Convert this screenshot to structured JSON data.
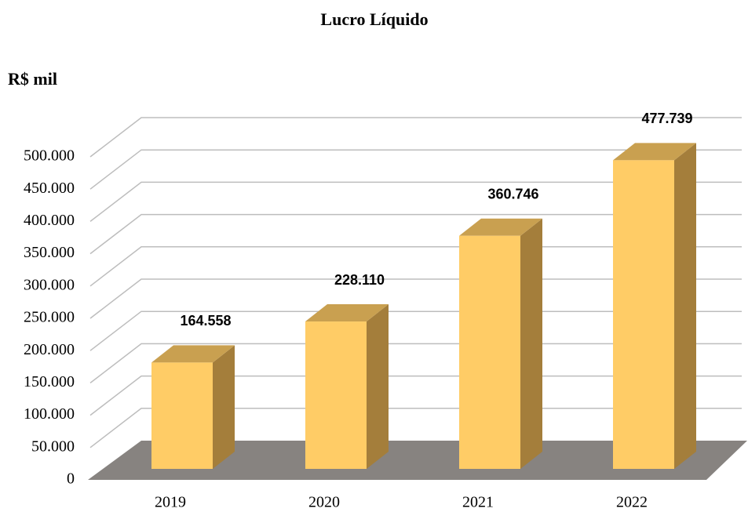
{
  "chart_data": {
    "type": "bar3d",
    "title": "Lucro Líquido",
    "ylabel": "R$ mil",
    "categories": [
      "2019",
      "2020",
      "2021",
      "2022"
    ],
    "values": [
      164558,
      228110,
      360746,
      477739
    ],
    "value_labels": [
      "164.558",
      "228.110",
      "360.746",
      "477.739"
    ],
    "color": "#ffcc66",
    "ylim": [
      0,
      500000
    ],
    "yticks": [
      0,
      {
        "value": 50000,
        "label": "50.000"
      },
      {
        "value": 100000,
        "label": "100.000"
      },
      {
        "value": 150000,
        "label": "150.000"
      },
      {
        "value": 200000,
        "label": "200.000"
      },
      {
        "value": 250000,
        "label": "250.000"
      },
      {
        "value": 300000,
        "label": "300.000"
      },
      {
        "value": 350000,
        "label": "350.000"
      },
      {
        "value": 400000,
        "label": "400.000"
      },
      {
        "value": 450000,
        "label": "450.000"
      },
      {
        "value": 500000,
        "label": "500.000"
      }
    ],
    "grid": true
  }
}
